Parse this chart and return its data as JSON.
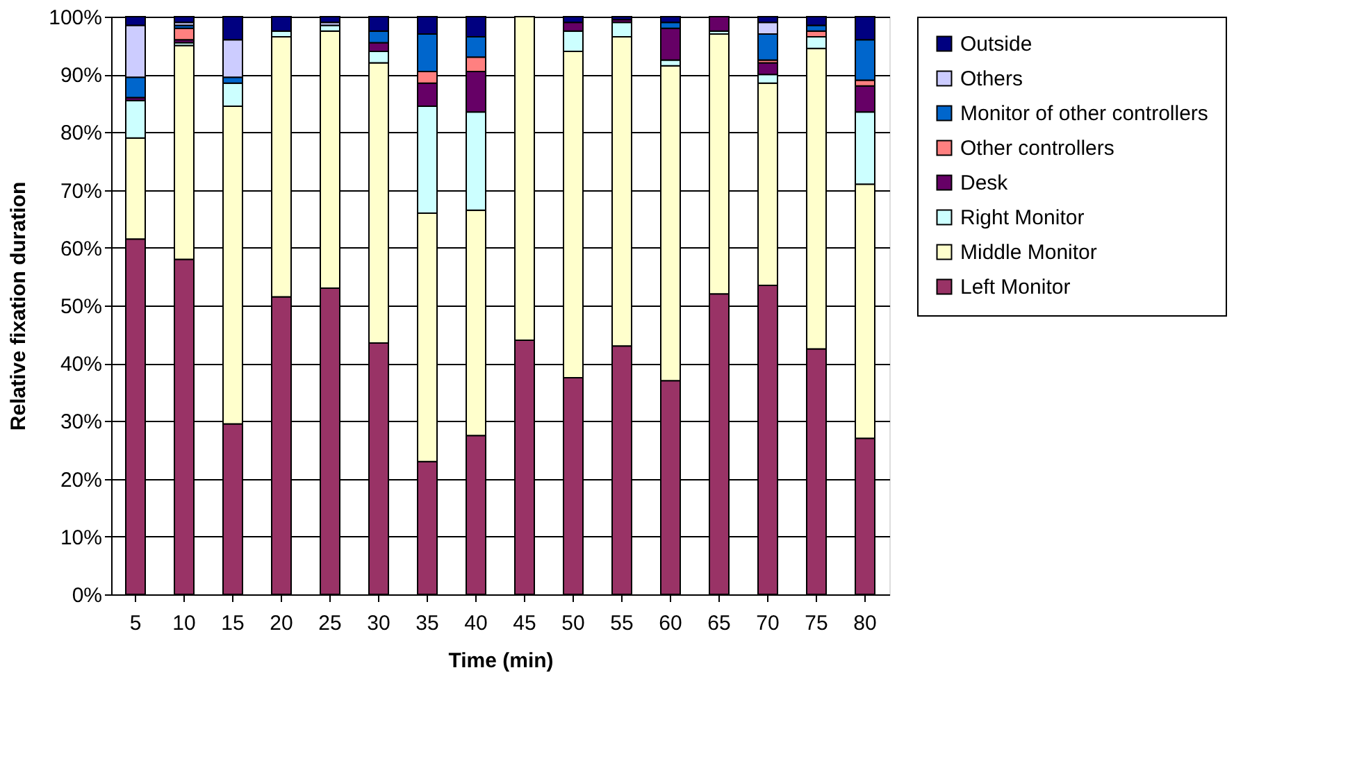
{
  "chart_data": {
    "type": "bar",
    "stacked": true,
    "xlabel": "Time (min)",
    "ylabel": "Relative fixation duration",
    "categories": [
      "5",
      "10",
      "15",
      "20",
      "25",
      "30",
      "35",
      "40",
      "45",
      "50",
      "55",
      "60",
      "65",
      "70",
      "75",
      "80"
    ],
    "series": [
      {
        "name": "Left Monitor",
        "color": "#993366",
        "values": [
          61.5,
          58,
          29.5,
          51.5,
          53,
          43.5,
          23,
          27.5,
          44,
          37.5,
          43,
          37,
          52,
          53.5,
          42.5,
          27
        ]
      },
      {
        "name": "Middle Monitor",
        "color": "#ffffcc",
        "values": [
          17.5,
          37,
          55,
          45,
          44.5,
          48.5,
          43,
          39,
          56,
          56.5,
          53.5,
          54.5,
          45,
          35,
          52,
          44
        ]
      },
      {
        "name": "Right Monitor",
        "color": "#ccffff",
        "values": [
          6.5,
          0.5,
          4,
          1,
          1,
          2,
          18.5,
          17,
          0,
          3.5,
          2.5,
          1,
          0.5,
          1.5,
          2,
          12.5
        ]
      },
      {
        "name": "Desk",
        "color": "#660066",
        "values": [
          0.5,
          0.5,
          0,
          0,
          0,
          1.5,
          4,
          7,
          0,
          1.5,
          0.5,
          5.5,
          2.5,
          2,
          0,
          4.5
        ]
      },
      {
        "name": "Other controllers",
        "color": "#ff8080",
        "values": [
          0,
          2,
          0,
          0,
          0,
          0,
          2,
          2.5,
          0,
          0,
          0,
          0,
          0,
          0.5,
          1,
          1
        ]
      },
      {
        "name": "Monitor of other controllers",
        "color": "#0066cc",
        "values": [
          3.5,
          0.5,
          1,
          0,
          0,
          2,
          6.5,
          3.5,
          0,
          0,
          0,
          1,
          0,
          4.5,
          1,
          7
        ]
      },
      {
        "name": "Others",
        "color": "#ccccff",
        "values": [
          9,
          0.5,
          6.5,
          0,
          0.5,
          0,
          0,
          0,
          0,
          0,
          0,
          0,
          0,
          2,
          0,
          0
        ]
      },
      {
        "name": "Outside",
        "color": "#000080",
        "values": [
          1.5,
          1,
          4,
          2.5,
          1,
          2.5,
          3,
          3.5,
          0,
          1,
          0.5,
          1,
          0,
          1,
          1.5,
          4
        ]
      }
    ],
    "ylim": [
      0,
      100
    ],
    "yticks": [
      {
        "value": 0,
        "label": "0%"
      },
      {
        "value": 10,
        "label": "10%"
      },
      {
        "value": 20,
        "label": "20%"
      },
      {
        "value": 30,
        "label": "30%"
      },
      {
        "value": 40,
        "label": "40%"
      },
      {
        "value": 50,
        "label": "50%"
      },
      {
        "value": 60,
        "label": "60%"
      },
      {
        "value": 70,
        "label": "70%"
      },
      {
        "value": 80,
        "label": "80%"
      },
      {
        "value": 90,
        "label": "90%"
      },
      {
        "value": 100,
        "label": "100%"
      }
    ],
    "grid": "y",
    "legend": "right"
  }
}
